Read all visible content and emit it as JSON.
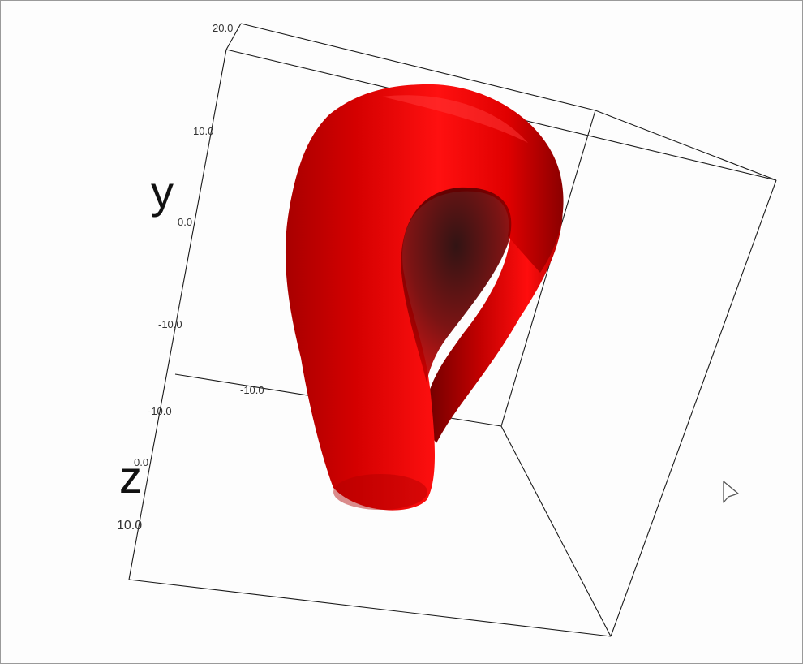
{
  "window": {
    "background": "#fdfdfd",
    "border_color": "#9a9a9a"
  },
  "plot3d": {
    "surface_color": "#ff0000",
    "surface_shape": "tube-loop (klein-bottle-like)",
    "box_color": "#1a1a1a",
    "axes": {
      "y": {
        "label": "y",
        "ticks": [
          "20.0",
          "10.0",
          "0.0",
          "-10.0",
          "-10.0"
        ]
      },
      "x": {
        "ticks": [
          "-10.0"
        ]
      },
      "z": {
        "label": "z",
        "ticks": [
          "0.0",
          "10.0"
        ]
      }
    }
  },
  "cursor": {
    "icon": "arrow-pointer-icon"
  }
}
